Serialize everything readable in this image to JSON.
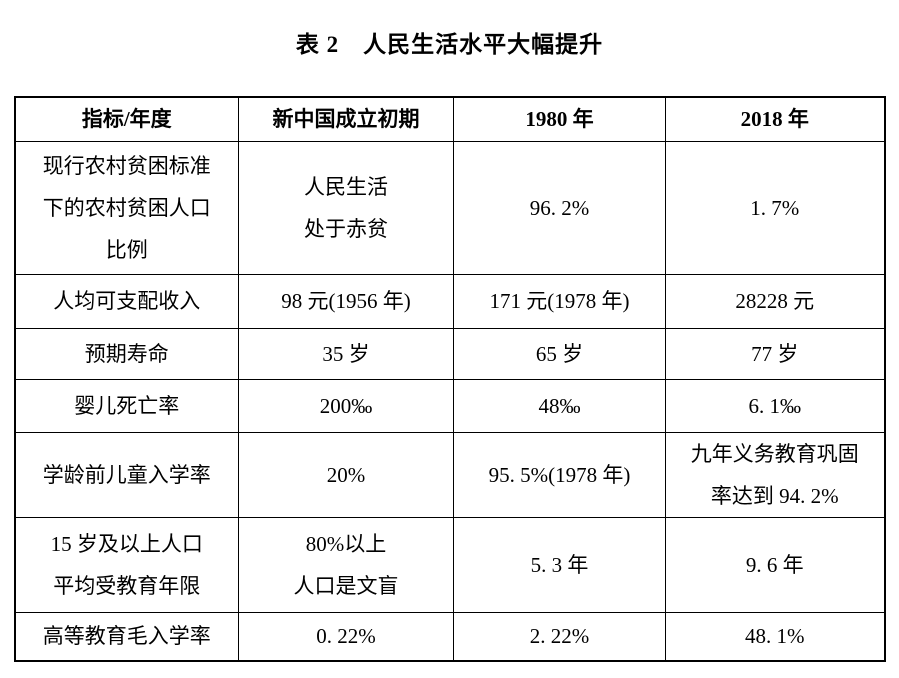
{
  "title": "表 2　人民生活水平大幅提升",
  "colors": {
    "background": "#ffffff",
    "text": "#000000",
    "border": "#000000"
  },
  "chart_data": {
    "type": "table",
    "title": "表 2　人民生活水平大幅提升",
    "headers": [
      "指标/年度",
      "新中国成立初期",
      "1980 年",
      "2018 年"
    ],
    "rows": [
      {
        "cells": [
          "现行农村贫困标准\n下的农村贫困人口\n比例",
          "人民生活\n处于赤贫",
          "96. 2%",
          "1. 7%"
        ]
      },
      {
        "cells": [
          "人均可支配收入",
          "98 元(1956 年)",
          "171 元(1978 年)",
          "28228 元"
        ]
      },
      {
        "cells": [
          "预期寿命",
          "35 岁",
          "65 岁",
          "77 岁"
        ]
      },
      {
        "cells": [
          "婴儿死亡率",
          "200‰",
          "48‰",
          "6. 1‰"
        ]
      },
      {
        "cells": [
          "学龄前儿童入学率",
          "20%",
          "95. 5%(1978 年)",
          "九年义务教育巩固\n率达到 94. 2%"
        ]
      },
      {
        "cells": [
          "15 岁及以上人口\n平均受教育年限",
          "80%以上\n人口是文盲",
          "5. 3 年",
          "9. 6 年"
        ]
      },
      {
        "cells": [
          "高等教育毛入学率",
          "0. 22%",
          "2. 22%",
          "48. 1%"
        ]
      }
    ]
  }
}
